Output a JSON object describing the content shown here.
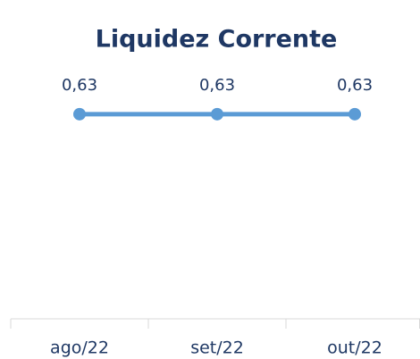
{
  "chart_data": {
    "type": "line",
    "title": "Liquidez Corrente",
    "categories": [
      "ago/22",
      "set/22",
      "out/22"
    ],
    "series": [
      {
        "name": "Liquidez Corrente",
        "color": "#5b9bd5",
        "values": [
          0.63,
          0.63,
          0.63
        ],
        "value_labels": [
          "0,63",
          "0,63",
          "0,63"
        ]
      }
    ],
    "ylim": [
      0,
      0.8
    ]
  }
}
